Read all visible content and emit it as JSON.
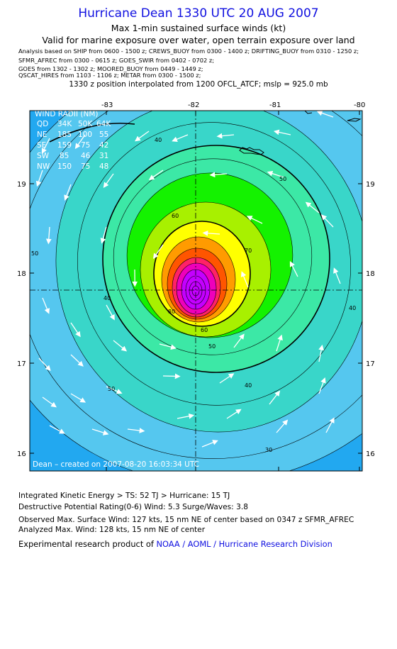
{
  "title": "Hurricane Dean 1330 UTC 20 AUG 2007",
  "subtitle": "Max 1-min sustained surface winds (kt)",
  "valid_note": "Valid for marine exposure over water, open terrain exposure over land",
  "sources": [
    "Analysis based on  SHIP from 0600 - 1500 z;  CREWS_BUOY from 0300 - 1400 z;  DRIFTING_BUOY from 0310 - 1250 z;",
    "SFMR_AFREC from 0300 - 0615 z;  GOES_SWIR from 0402 - 0702 z;",
    "GOES from 1302 - 1302 z;  MOORED_BUOY from 0449 - 1449 z;",
    "QSCAT_HIRES from 1103 - 1106 z;  METAR from 0300 - 1500 z;"
  ],
  "interp_note": "1330 z position interpolated from 1200 OFCL_ATCF; mslp = 925.0 mb",
  "map": {
    "lon_ticks": [
      "-83",
      "-82",
      "-81",
      "-80"
    ],
    "lat_ticks": [
      "19",
      "18",
      "17",
      "16"
    ],
    "wind_radii": {
      "title": "WIND RADII (NM)",
      "header": [
        "QD",
        "34K",
        "50K",
        "64K"
      ],
      "rows": [
        [
          "NE",
          "185",
          "100",
          "55"
        ],
        [
          "SE",
          "159",
          "75",
          "42"
        ],
        [
          "SW",
          "85",
          "46",
          "31"
        ],
        [
          "NW",
          "150",
          "75",
          "48"
        ]
      ]
    },
    "contour_labels": [
      "40",
      "40",
      "40",
      "40",
      "50",
      "50",
      "50",
      "50",
      "60",
      "60",
      "70",
      "80",
      "30"
    ],
    "created": "Dean – created on 2007-08-20 16:03:34 UTC",
    "colors": {
      "ocean": "#22a8f0",
      "w30": "#55c7ef",
      "w40": "#39d6c9",
      "w50": "#3ce8a6",
      "w60": "#14f200",
      "w65": "#a8f000",
      "w70": "#ffff00",
      "w80": "#ff9b00",
      "w90": "#ff5500",
      "w100": "#ff2266",
      "w110": "#ee00bb",
      "w120": "#c400ff"
    }
  },
  "stats": {
    "ike": "Integrated Kinetic Energy > TS: 52 TJ   > Hurricane: 15 TJ",
    "dpr": "Destructive Potential Rating(0-6)   Wind: 5.3 Surge/Waves: 3.8",
    "observed": "Observed Max. Surface Wind: 127 kts, 15 nm NE of center based on 0347 z SFMR_AFREC",
    "analyzed": "Analyzed Max. Wind: 128 kts, 15 nm NE of center"
  },
  "credit": {
    "prefix": "Experimental research product of ",
    "org": "NOAA / AOML / Hurricane Research Division"
  }
}
